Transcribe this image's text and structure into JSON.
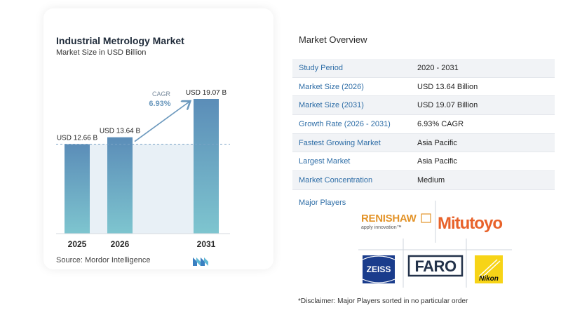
{
  "chart_data": {
    "type": "bar",
    "title": "Industrial Metrology Market",
    "subtitle": "Market Size in USD Billion",
    "categories": [
      "2025",
      "2026",
      "2031"
    ],
    "values": [
      12.66,
      13.64,
      19.07
    ],
    "value_labels": [
      "USD 12.66 B",
      "USD 13.64 B",
      "USD 19.07 B"
    ],
    "cagr_label": "CAGR",
    "cagr_value": "6.93%",
    "colors": {
      "bar_top": "#5b8db8",
      "bar_bottom": "#7ec5cf",
      "shade": "#e8f0f6",
      "arrow": "#6b98bd"
    }
  },
  "source": "Source:  Mordor Intelligence",
  "overview": {
    "title": "Market Overview",
    "rows": [
      {
        "label": "Study Period",
        "value": "2020 - 2031"
      },
      {
        "label": "Market Size (2026)",
        "value": "USD 13.64 Billion"
      },
      {
        "label": "Market Size (2031)",
        "value": "USD 19.07 Billion"
      },
      {
        "label": "Growth Rate (2026 - 2031)",
        "value": "6.93% CAGR"
      },
      {
        "label": "Fastest Growing Market",
        "value": "Asia Pacific"
      },
      {
        "label": "Largest Market",
        "value": "Asia Pacific"
      },
      {
        "label": "Market Concentration",
        "value": "Medium"
      }
    ]
  },
  "players": {
    "label": "Major Players",
    "renishaw": "RENISHAW",
    "renishaw_tagline": "apply innovation™",
    "mitutoyo": "Mitutoyo",
    "zeiss": "ZEISS",
    "faro": "FARO",
    "nikon": "Nikon"
  },
  "disclaimer": "*Disclaimer: Major Players sorted in no particular order"
}
